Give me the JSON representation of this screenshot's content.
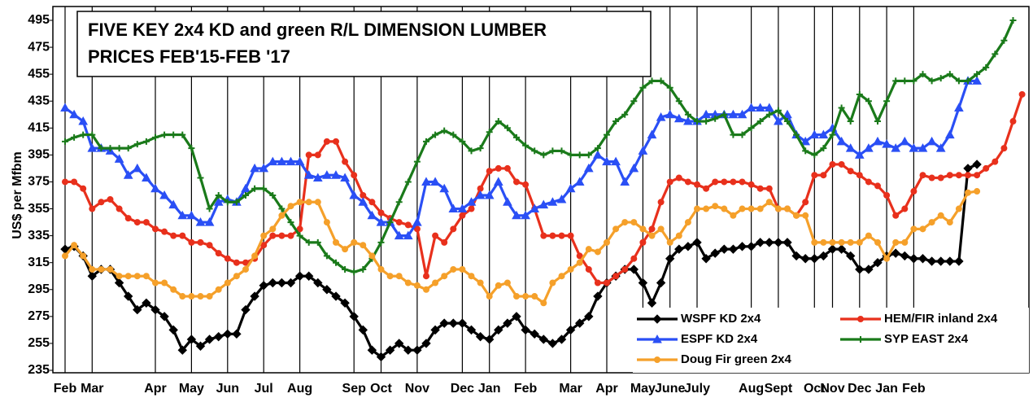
{
  "chart_data": {
    "type": "line",
    "title": [
      "FIVE KEY 2x4 KD and green R/L DIMENSION LUMBER",
      "PRICES FEB'15-FEB '17"
    ],
    "ylabel": "US$ per Mfbm",
    "categories": [
      "Feb",
      null,
      null,
      "Mar",
      null,
      null,
      null,
      null,
      null,
      null,
      "Apr",
      null,
      null,
      null,
      "May",
      null,
      null,
      null,
      "Jun",
      null,
      null,
      null,
      "Jul",
      null,
      null,
      null,
      "Aug",
      null,
      null,
      null,
      null,
      null,
      "Sep",
      null,
      null,
      "Oct",
      null,
      null,
      null,
      "Nov",
      null,
      null,
      null,
      null,
      "Dec",
      null,
      null,
      "Jan",
      null,
      null,
      null,
      "Feb",
      null,
      null,
      null,
      null,
      "Mar",
      null,
      null,
      null,
      "Apr",
      null,
      null,
      null,
      "May",
      null,
      null,
      "June",
      null,
      null,
      "July",
      null,
      null,
      null,
      null,
      null,
      "Aug",
      null,
      null,
      "Sept",
      null,
      null,
      null,
      "Oct",
      null,
      "Nov",
      null,
      null,
      "Dec",
      null,
      null,
      "Jan",
      null,
      null,
      "Feb",
      null,
      null,
      null,
      null,
      null,
      null,
      null,
      null,
      null,
      null,
      null,
      null
    ],
    "series": [
      {
        "name": "WSPF KD 2x4",
        "color": "#000000",
        "marker": "diamond",
        "values": [
          325,
          327,
          320,
          305,
          310,
          310,
          300,
          290,
          280,
          285,
          280,
          275,
          265,
          250,
          258,
          253,
          258,
          260,
          262,
          262,
          280,
          290,
          298,
          300,
          300,
          300,
          305,
          305,
          300,
          295,
          290,
          285,
          275,
          265,
          250,
          245,
          250,
          255,
          250,
          250,
          255,
          265,
          270,
          270,
          270,
          265,
          260,
          258,
          265,
          270,
          275,
          265,
          262,
          258,
          255,
          258,
          265,
          270,
          275,
          290,
          300,
          305,
          310,
          310,
          300,
          285,
          300,
          318,
          325,
          327,
          330,
          318,
          322,
          325,
          325,
          327,
          327,
          330,
          330,
          330,
          330,
          320,
          318,
          318,
          320,
          325,
          325,
          320,
          310,
          310,
          315,
          320,
          322,
          320,
          318,
          318,
          316,
          316,
          316,
          316,
          385,
          388,
          null,
          null,
          null,
          null,
          null
        ]
      },
      {
        "name": "HEM/FIR inland 2x4",
        "color": "#e8301c",
        "marker": "circle",
        "values": [
          375,
          375,
          370,
          355,
          360,
          362,
          355,
          348,
          345,
          345,
          340,
          338,
          335,
          335,
          330,
          330,
          328,
          322,
          318,
          315,
          315,
          318,
          328,
          335,
          335,
          335,
          340,
          395,
          395,
          405,
          405,
          390,
          380,
          365,
          360,
          352,
          348,
          345,
          343,
          340,
          305,
          335,
          330,
          340,
          350,
          355,
          370,
          383,
          385,
          385,
          375,
          373,
          355,
          335,
          335,
          335,
          335,
          320,
          310,
          300,
          300,
          305,
          310,
          318,
          330,
          340,
          360,
          375,
          378,
          375,
          373,
          370,
          375,
          375,
          375,
          375,
          373,
          370,
          370,
          355,
          355,
          350,
          360,
          380,
          380,
          388,
          388,
          383,
          380,
          375,
          372,
          365,
          350,
          355,
          368,
          380,
          378,
          378,
          380,
          380,
          380,
          380,
          385,
          390,
          400,
          420,
          440
        ]
      },
      {
        "name": "ESPF KD 2x4",
        "color": "#2a4ff5",
        "marker": "triangle",
        "values": [
          430,
          425,
          420,
          400,
          400,
          398,
          392,
          380,
          385,
          378,
          370,
          365,
          358,
          350,
          350,
          345,
          345,
          360,
          362,
          360,
          370,
          385,
          385,
          390,
          390,
          390,
          390,
          380,
          378,
          380,
          380,
          378,
          365,
          360,
          350,
          345,
          345,
          335,
          335,
          345,
          375,
          375,
          370,
          355,
          355,
          360,
          365,
          365,
          375,
          360,
          350,
          350,
          355,
          358,
          360,
          362,
          370,
          375,
          385,
          395,
          390,
          390,
          375,
          385,
          398,
          410,
          423,
          425,
          422,
          420,
          420,
          425,
          425,
          425,
          425,
          425,
          430,
          430,
          430,
          420,
          425,
          410,
          405,
          410,
          410,
          415,
          405,
          400,
          395,
          400,
          405,
          403,
          400,
          405,
          400,
          400,
          405,
          400,
          410,
          430,
          450,
          450,
          null,
          null,
          null,
          null,
          null
        ]
      },
      {
        "name": "SYP EAST 2x4",
        "color": "#1a7a1a",
        "marker": "plus",
        "values": [
          405,
          408,
          410,
          410,
          400,
          400,
          400,
          400,
          403,
          405,
          408,
          410,
          410,
          410,
          400,
          378,
          355,
          365,
          360,
          360,
          365,
          370,
          370,
          365,
          355,
          345,
          335,
          330,
          330,
          320,
          315,
          310,
          308,
          310,
          318,
          330,
          345,
          360,
          375,
          390,
          405,
          410,
          413,
          410,
          405,
          398,
          400,
          412,
          420,
          415,
          408,
          402,
          398,
          395,
          398,
          398,
          395,
          395,
          395,
          400,
          410,
          420,
          425,
          435,
          445,
          450,
          450,
          445,
          435,
          425,
          420,
          420,
          422,
          425,
          410,
          410,
          415,
          420,
          425,
          428,
          420,
          410,
          398,
          395,
          400,
          410,
          430,
          420,
          440,
          435,
          420,
          435,
          450,
          450,
          450,
          455,
          450,
          452,
          455,
          450,
          450,
          455,
          460,
          470,
          480,
          495,
          null
        ]
      },
      {
        "name": "Doug Fir green 2x4",
        "color": "#f5a02a",
        "marker": "circle",
        "values": [
          320,
          328,
          320,
          310,
          310,
          310,
          305,
          305,
          305,
          305,
          300,
          300,
          295,
          290,
          290,
          290,
          290,
          295,
          300,
          305,
          310,
          320,
          335,
          340,
          350,
          357,
          360,
          360,
          360,
          345,
          330,
          325,
          330,
          328,
          320,
          310,
          305,
          305,
          300,
          298,
          295,
          300,
          305,
          310,
          310,
          305,
          300,
          290,
          298,
          300,
          290,
          290,
          290,
          285,
          300,
          305,
          310,
          315,
          325,
          323,
          330,
          340,
          345,
          345,
          340,
          335,
          340,
          330,
          335,
          345,
          355,
          355,
          357,
          355,
          350,
          355,
          355,
          355,
          360,
          355,
          355,
          350,
          350,
          330,
          330,
          330,
          330,
          330,
          330,
          335,
          330,
          318,
          330,
          330,
          340,
          340,
          345,
          350,
          345,
          355,
          367,
          368,
          null,
          null,
          null,
          null,
          null
        ]
      }
    ],
    "ylim": [
      235,
      495
    ],
    "yticks": [
      235,
      255,
      275,
      295,
      315,
      335,
      355,
      375,
      395,
      415,
      435,
      455,
      475,
      495
    ],
    "legend": "lower right",
    "grid": true
  }
}
